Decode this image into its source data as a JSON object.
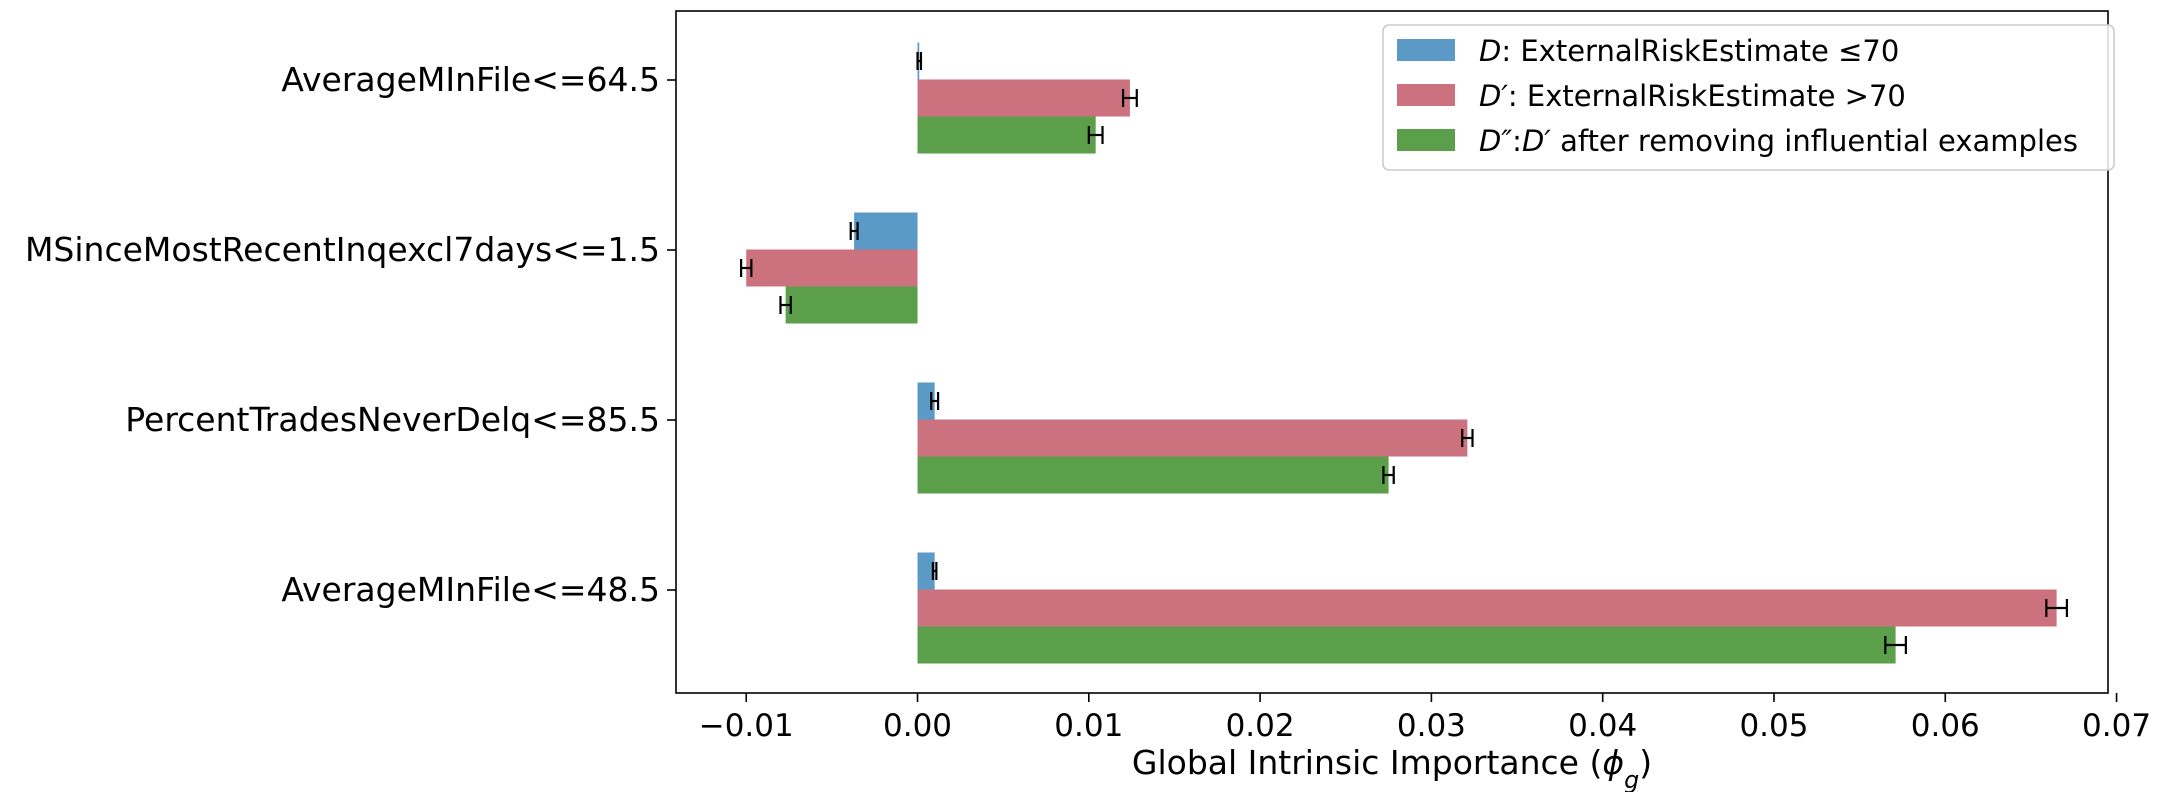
{
  "chart_data": {
    "type": "bar",
    "orientation": "horizontal",
    "categories": [
      "AverageMInFile<=64.5",
      "MSinceMostRecentInqexcl7days<=1.5",
      "PercentTradesNeverDelq<=85.5",
      "AverageMInFile<=48.5"
    ],
    "series": [
      {
        "name": "D: ExternalRiskEstimate ≤ 70",
        "legend_parts": [
          {
            "t": "D",
            "it": true
          },
          {
            "t": ": ExternalRiskEstimate ≤70",
            "it": false
          }
        ],
        "color": "#5b9ac6",
        "values": [
          0.0001,
          -0.0037,
          0.001,
          0.001
        ],
        "errors": [
          0.0001,
          0.0002,
          0.0002,
          0.0001
        ]
      },
      {
        "name": "D′: ExternalRiskEstimate > 70",
        "legend_parts": [
          {
            "t": "D′",
            "it": true
          },
          {
            "t": ": ExternalRiskEstimate >70",
            "it": false
          }
        ],
        "color": "#cc727f",
        "values": [
          0.0124,
          -0.01,
          0.0321,
          0.0665
        ],
        "errors": [
          0.0004,
          0.0003,
          0.0003,
          0.0006
        ]
      },
      {
        "name": "D″:D′ after removing influential examples",
        "legend_parts": [
          {
            "t": "D″",
            "it": true
          },
          {
            "t": ":",
            "it": false
          },
          {
            "t": "D′",
            "it": true
          },
          {
            "t": " after removing influential examples",
            "it": false
          }
        ],
        "color": "#5b9f4a",
        "values": [
          0.0104,
          -0.0077,
          0.0275,
          0.0571
        ],
        "errors": [
          0.0004,
          0.0003,
          0.0003,
          0.0006
        ]
      }
    ],
    "xlabel": "Global Intrinsic Importance (ϕg)",
    "xlabel_parts": [
      {
        "t": "Global Intrinsic Importance (",
        "it": false
      },
      {
        "t": "ϕ",
        "it": true
      },
      {
        "t": "g",
        "it": true,
        "sub": true
      },
      {
        "t": ")",
        "it": false
      }
    ],
    "ylabel": "",
    "xlim": [
      -0.0141,
      0.0695
    ],
    "xticks": [
      -0.01,
      0.0,
      0.01,
      0.02,
      0.03,
      0.04,
      0.05,
      0.06,
      0.07
    ],
    "xtick_labels": [
      "−0.01",
      "0.00",
      "0.01",
      "0.02",
      "0.03",
      "0.04",
      "0.05",
      "0.06",
      "0.07"
    ],
    "grid": false,
    "legend_position": "top-right"
  }
}
